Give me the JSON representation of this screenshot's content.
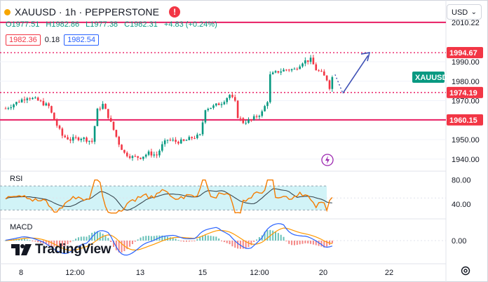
{
  "header": {
    "title": "XAUUSD · 1h · PEPPERSTONE",
    "ohlc": {
      "open": "O1977.51",
      "high": "H1982.86",
      "low": "L1977.38",
      "close": "C1982.31",
      "change": "+4.83 (+0.24%)"
    },
    "bid": "1982.36",
    "spread": "0.18",
    "ask": "1982.54"
  },
  "currency_selector": {
    "value": "USD"
  },
  "price_axis": {
    "ticks": [
      "2010.22",
      "1990.00",
      "1980.00",
      "1970.00",
      "1950.00",
      "1940.00"
    ],
    "labels": [
      {
        "text": "1994.67",
        "color": "#f23645",
        "kind": "level"
      },
      {
        "text": "1974.19",
        "color": "#f23645",
        "kind": "level"
      },
      {
        "text": "1960.15",
        "color": "#f23645",
        "kind": "level"
      },
      {
        "text": "XAUUSD",
        "color": "#089981",
        "kind": "symbol"
      }
    ]
  },
  "rsi_panel": {
    "label": "RSI",
    "ticks": [
      "80.00",
      "40.00"
    ]
  },
  "macd_panel": {
    "label": "MACD",
    "ticks": [
      "0.00"
    ]
  },
  "time_axis": {
    "labels": [
      "8",
      "12:00",
      "13",
      "15",
      "12:00",
      "20",
      "22"
    ]
  },
  "branding": {
    "logo_text": "TradingView"
  },
  "colors": {
    "up": "#089981",
    "down": "#f23645",
    "level": "#e91e63",
    "arrow": "#3f51b5",
    "rsi_band": "#b2ebf2",
    "rsi_line": "#f57c00",
    "rsi_ma": "#37474f",
    "macd_line": "#2962ff",
    "signal_line": "#ff9800"
  },
  "chart_data": {
    "type": "candlestick",
    "symbol": "XAUUSD",
    "interval": "1h",
    "price_levels": [
      2010.22,
      1994.67,
      1974.19,
      1960.15
    ],
    "close_path": [
      [
        0,
        1966
      ],
      [
        4,
        1969
      ],
      [
        8,
        1972
      ],
      [
        12,
        1970
      ],
      [
        16,
        1967
      ],
      [
        18,
        1960
      ],
      [
        21,
        1952
      ],
      [
        24,
        1950
      ],
      [
        28,
        1951
      ],
      [
        32,
        1949
      ],
      [
        34,
        1965
      ],
      [
        36,
        1968
      ],
      [
        38,
        1962
      ],
      [
        40,
        1955
      ],
      [
        42,
        1948
      ],
      [
        44,
        1943
      ],
      [
        47,
        1941
      ],
      [
        50,
        1941
      ],
      [
        53,
        1943
      ],
      [
        56,
        1942
      ],
      [
        58,
        1947
      ],
      [
        60,
        1950
      ],
      [
        63,
        1949
      ],
      [
        66,
        1949
      ],
      [
        69,
        1951
      ],
      [
        72,
        1952
      ],
      [
        74,
        1966
      ],
      [
        77,
        1967
      ],
      [
        80,
        1969
      ],
      [
        83,
        1973
      ],
      [
        85,
        1969
      ],
      [
        86,
        1962
      ],
      [
        88,
        1959
      ],
      [
        91,
        1960
      ],
      [
        93,
        1962
      ],
      [
        95,
        1964
      ],
      [
        97,
        1970
      ],
      [
        98,
        1983
      ],
      [
        101,
        1985
      ],
      [
        104,
        1986
      ],
      [
        107,
        1986
      ],
      [
        110,
        1990
      ],
      [
        113,
        1991
      ],
      [
        115,
        1986
      ],
      [
        117,
        1984
      ],
      [
        119,
        1981
      ],
      [
        120,
        1977
      ],
      [
        121,
        1982
      ]
    ],
    "rsi": {
      "range": [
        20,
        90
      ],
      "band": [
        30,
        70
      ]
    },
    "projection": {
      "arrow_to_level": 1994.67
    }
  }
}
